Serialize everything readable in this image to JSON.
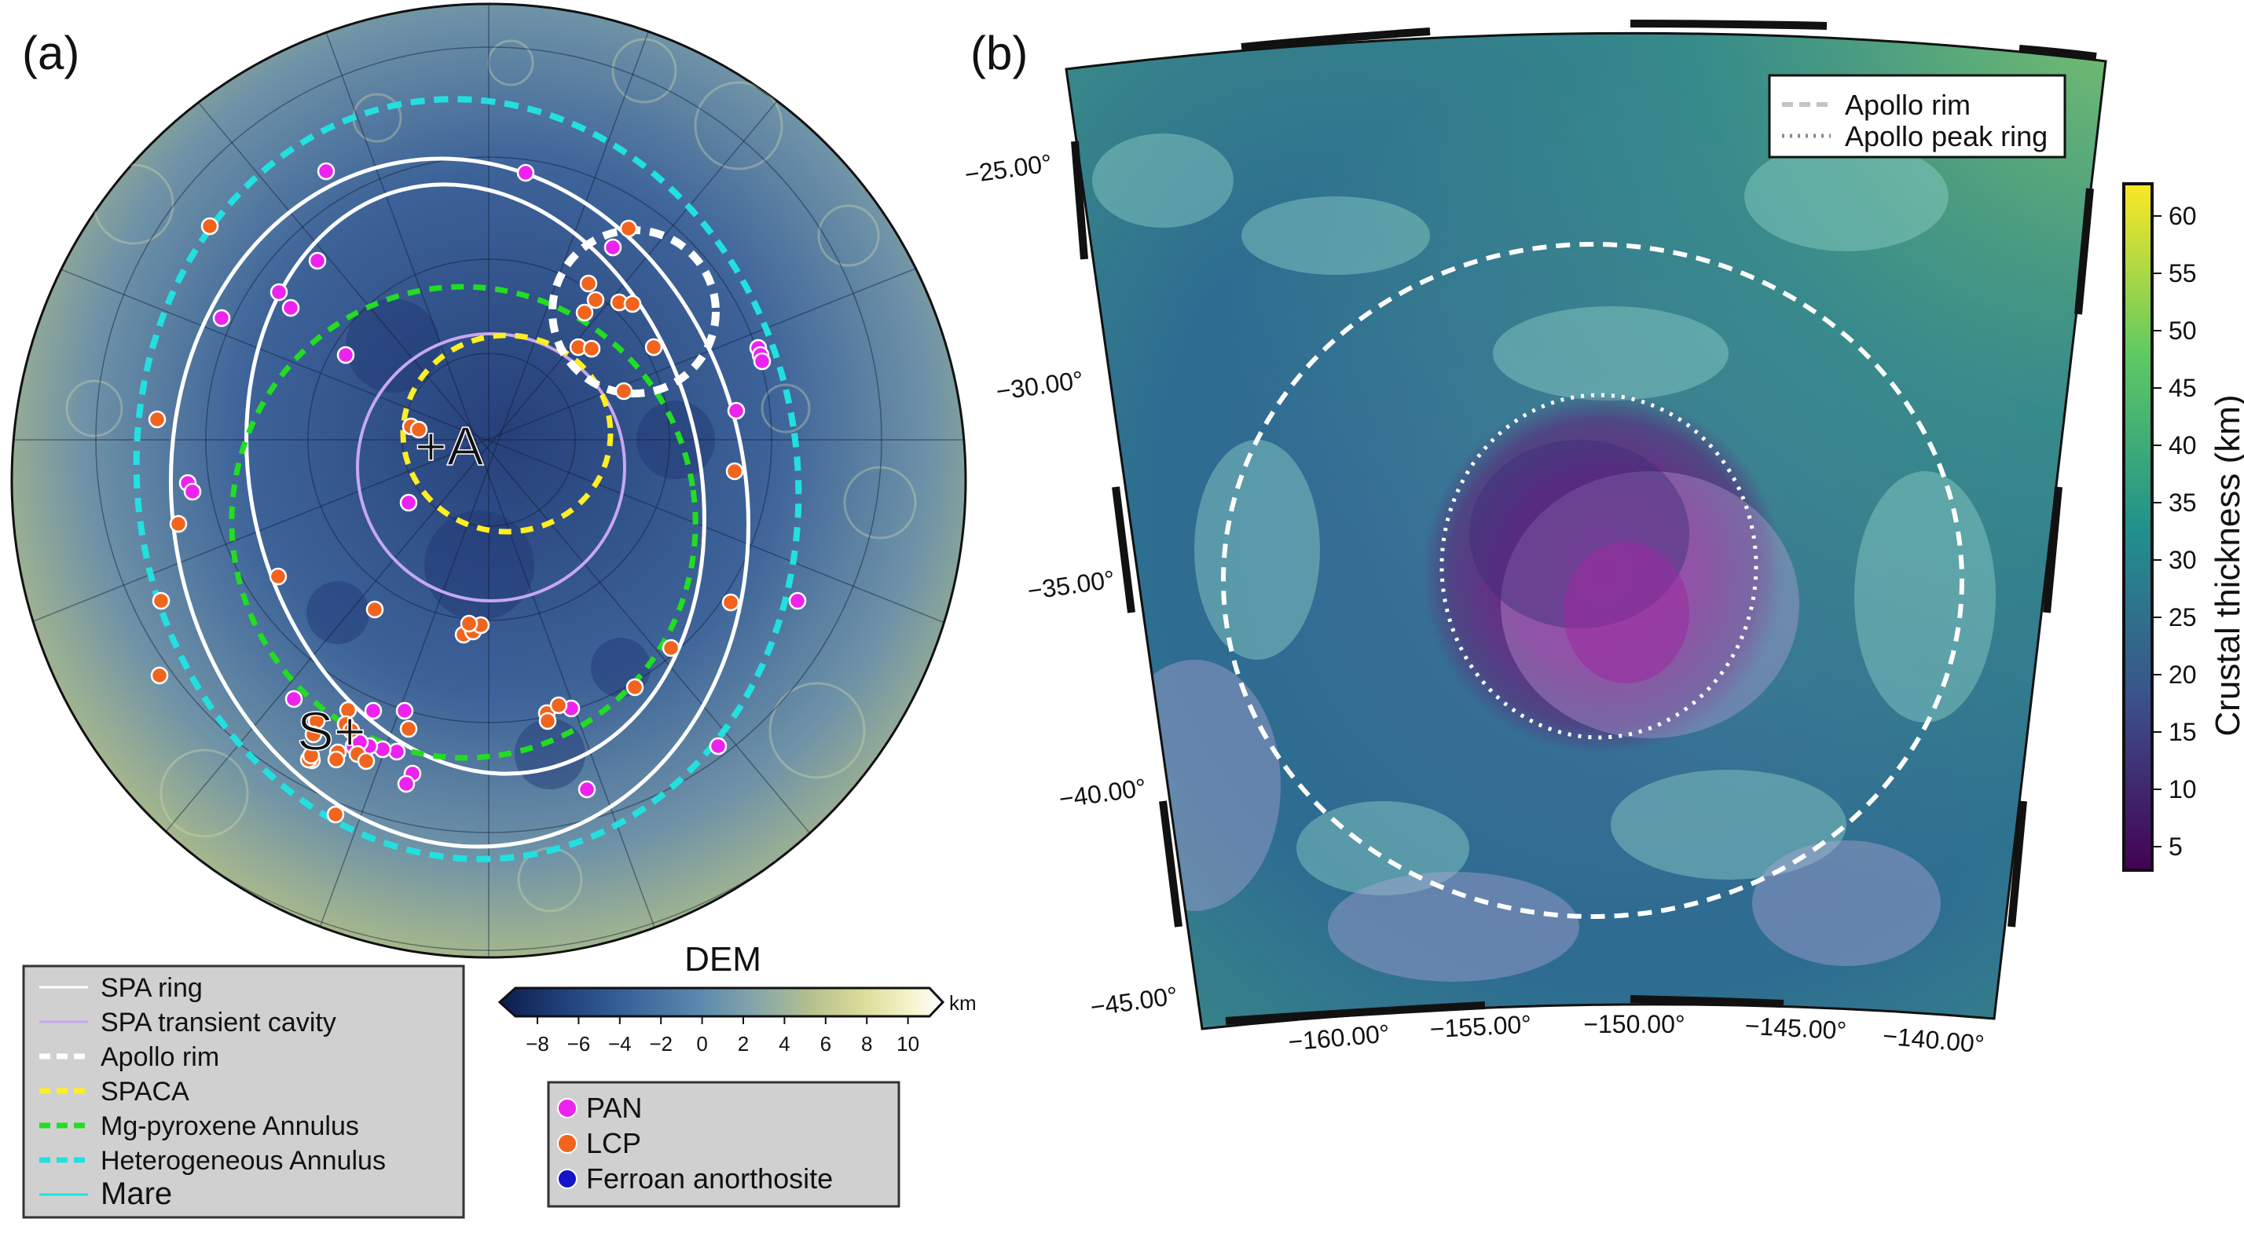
{
  "panel_a": {
    "label": "(a)",
    "markers": [
      {
        "name": "point-a",
        "text": "+A"
      },
      {
        "name": "point-s",
        "text": "S+"
      }
    ],
    "legend_lines": [
      {
        "name": "spa-ring",
        "label": "SPA ring",
        "color": "#ffffff",
        "style": "solid"
      },
      {
        "name": "spa-transient-cavity",
        "label": "SPA transient cavity",
        "color": "#c7a8f0",
        "style": "solid"
      },
      {
        "name": "apollo-rim",
        "label": "Apollo rim",
        "color": "#ffffff",
        "style": "dashed"
      },
      {
        "name": "spaca",
        "label": "SPACA",
        "color": "#ffee22",
        "style": "dashed"
      },
      {
        "name": "mg-pyroxene-annulus",
        "label": "Mg-pyroxene Annulus",
        "color": "#22dd22",
        "style": "dashed"
      },
      {
        "name": "heterogeneous-annulus",
        "label": "Heterogeneous Annulus",
        "color": "#22e0e0",
        "style": "dashed"
      },
      {
        "name": "mare",
        "label": "Mare",
        "color": "#22e0e0",
        "style": "solid"
      }
    ],
    "dem": {
      "title": "DEM",
      "unit": "km",
      "ticks": [
        "−8",
        "−6",
        "−4",
        "−2",
        "0",
        "2",
        "4",
        "6",
        "8",
        "10"
      ],
      "colors": [
        "#0b1d4a",
        "#203f7a",
        "#3a669c",
        "#5b88ad",
        "#86a6a9",
        "#b3c08e",
        "#dcdc9a",
        "#f4f2c8",
        "#ffffff"
      ]
    },
    "sample_legend": [
      {
        "name": "pan",
        "label": "PAN",
        "color": "#ee22ee"
      },
      {
        "name": "lcp",
        "label": "LCP",
        "color": "#f0641e"
      },
      {
        "name": "ferroan-anorthosite",
        "label": "Ferroan anorthosite",
        "color": "#1414c8"
      }
    ]
  },
  "panel_b": {
    "label": "(b)",
    "lat_labels": [
      "−25.00°",
      "−30.00°",
      "−35.00°",
      "−40.00°",
      "−45.00°"
    ],
    "lon_labels": [
      "−160.00°",
      "−155.00°",
      "−150.00°",
      "−145.00°",
      "−140.00°"
    ],
    "legend": [
      {
        "name": "apollo-rim",
        "label": "Apollo rim",
        "style": "dashed"
      },
      {
        "name": "apollo-peak-ring",
        "label": "Apollo peak ring",
        "style": "dotted"
      }
    ],
    "colorbar": {
      "label": "Crustal thickness (km)",
      "ticks": [
        "60",
        "55",
        "50",
        "45",
        "40",
        "35",
        "30",
        "25",
        "20",
        "15",
        "10",
        "5"
      ],
      "colors": [
        "#440154",
        "#3b528b",
        "#21918c",
        "#5ec962",
        "#fde725"
      ]
    }
  }
}
